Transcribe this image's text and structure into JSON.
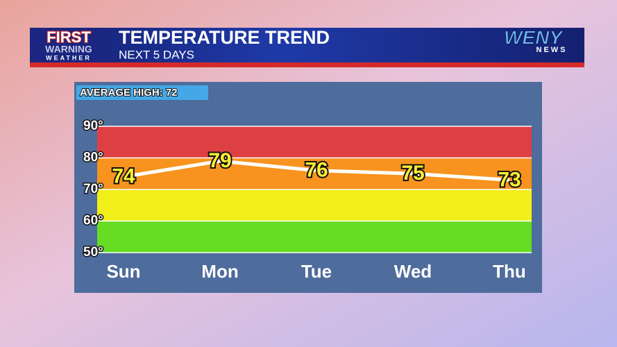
{
  "header": {
    "brand_line1": "FIRST",
    "brand_line2": "WARNING",
    "brand_line3": "WEATHER",
    "station": "WENY",
    "station_sub": "NEWS"
  },
  "chart_data": {
    "type": "line",
    "title": "TEMPERATURE TREND",
    "subtitle": "NEXT 5 DAYS",
    "annotation": "AVERAGE HIGH: 72",
    "categories": [
      "Sun",
      "Mon",
      "Tue",
      "Wed",
      "Thu"
    ],
    "values": [
      74,
      79,
      76,
      75,
      73
    ],
    "color": "#ffffff",
    "label_color": "#ffee33",
    "ylim": [
      50,
      90
    ],
    "yticks": [
      {
        "value": 50,
        "label": "50°"
      },
      {
        "value": 60,
        "label": "60°"
      },
      {
        "value": 70,
        "label": "70°"
      },
      {
        "value": 80,
        "label": "80°"
      },
      {
        "value": 90,
        "label": "90°"
      }
    ],
    "bands": [
      {
        "from": 50,
        "to": 60,
        "color": "#66dd22"
      },
      {
        "from": 60,
        "to": 70,
        "color": "#f2ee1a"
      },
      {
        "from": 70,
        "to": 80,
        "color": "#f7931e"
      },
      {
        "from": 80,
        "to": 90,
        "color": "#dd4043"
      }
    ],
    "grid": true
  }
}
